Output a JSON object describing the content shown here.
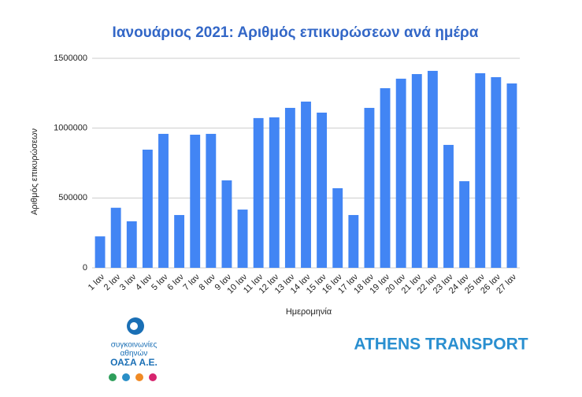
{
  "chart_data": {
    "type": "bar",
    "title": "Ιανουάριος 2021: Αριθμός επικυρώσεων ανά ημέρα",
    "x_label": "Ημερομηνία",
    "y_label": "Αριθμός επικυρώσεων",
    "categories": [
      "1 Ιαν",
      "2 Ιαν",
      "3 Ιαν",
      "4 Ιαν",
      "5 Ιαν",
      "6 Ιαν",
      "7 Ιαν",
      "8 Ιαν",
      "9 Ιαν",
      "10 Ιαν",
      "11 Ιαν",
      "12 Ιαν",
      "13 Ιαν",
      "14 Ιαν",
      "15 Ιαν",
      "16 Ιαν",
      "17 Ιαν",
      "18 Ιαν",
      "19 Ιαν",
      "20 Ιαν",
      "21 Ιαν",
      "22 Ιαν",
      "23 Ιαν",
      "24 Ιαν",
      "25 Ιαν",
      "26 Ιαν",
      "27 Ιαν"
    ],
    "values": [
      225000,
      430000,
      333000,
      846000,
      959000,
      378000,
      953000,
      959000,
      626000,
      417000,
      1072000,
      1077000,
      1145000,
      1190000,
      1111000,
      570000,
      378000,
      1145000,
      1286000,
      1354000,
      1387000,
      1410000,
      880000,
      620000,
      1393000,
      1365000,
      1320000
    ],
    "color": "#4285f4",
    "ylim": [
      0,
      1500000
    ],
    "yticks": [
      0,
      500000,
      1000000,
      1500000
    ],
    "grid": true
  },
  "logo": {
    "line1": "συγκοινωνίες",
    "line2": "αθηνών",
    "line3": "ΟΑΣΑ Α.Ε.",
    "brand": "ATHENS TRANSPORT"
  }
}
